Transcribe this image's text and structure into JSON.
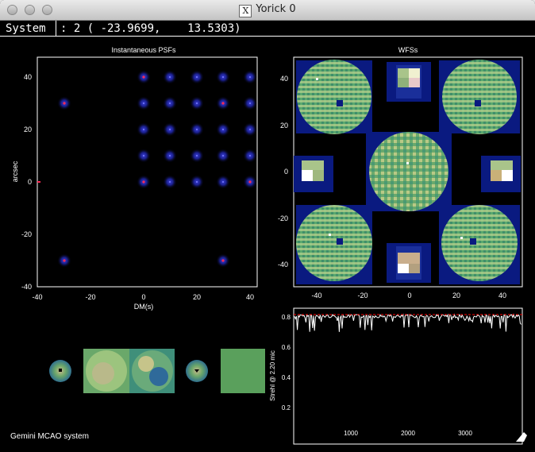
{
  "window": {
    "title": "Yorick 0",
    "x_logo": "X"
  },
  "status": {
    "label": "System",
    "coords": ": 2 ( -23.9699,    13.5303)"
  },
  "psf_plot": {
    "title": "Instantaneous PSFs",
    "xlabel": "DM(s)",
    "ylabel": "arcsec",
    "x_ticks": [
      "-40",
      "-20",
      "0",
      "20",
      "40"
    ],
    "y_ticks": [
      "-40",
      "-20",
      "0",
      "20",
      "40"
    ]
  },
  "wfs_plot": {
    "title": "WFSs",
    "x_ticks": [
      "-40",
      "-20",
      "0",
      "20",
      "40"
    ],
    "y_ticks": [
      "-40",
      "-20",
      "0",
      "20",
      "40"
    ]
  },
  "strehl_plot": {
    "ylabel": "Strehl @ 2.20 mic",
    "x_ticks": [
      "1000",
      "2000",
      "3000"
    ],
    "y_ticks": [
      "0.2",
      "0.4",
      "0.6",
      "0.8"
    ]
  },
  "caption": "Gemini MCAO system",
  "colors": {
    "background": "#000000",
    "axes": "#ffffff",
    "psf_core": "#ff2a55",
    "psf_halo": "#1a1f9c",
    "wfs_green": "#5fa66a",
    "strehl_mean": "#ff0000"
  }
}
